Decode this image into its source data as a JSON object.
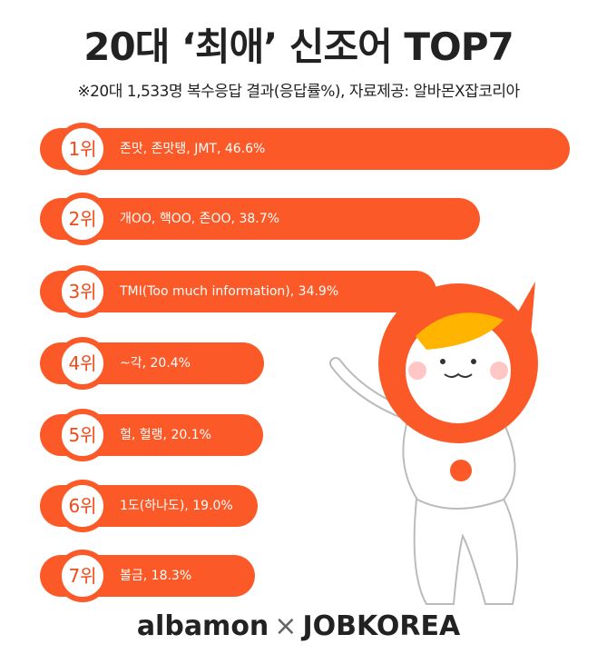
{
  "title": "20대 ‘최애’ 신조어 TOP7",
  "subtitle": "※20대 1,533명 복수응답 결과(응답률%),  자료제공: 알바몬X잡코리아",
  "chart_data": {
    "type": "bar",
    "orientation": "horizontal",
    "title": "20대 ‘최애’ 신조어 TOP7",
    "unit": "%",
    "bar_color": "#fb5a28",
    "categories": [
      "1위",
      "2위",
      "3위",
      "4위",
      "5위",
      "6위",
      "7위"
    ],
    "labels": [
      "존맛, 존맛탱, JMT, 46.6%",
      "개OO, 핵OO, 존OO, 38.7%",
      "TMI(Too much information), 34.9%",
      "~각, 20.4%",
      "헐, 헐랭, 20.1%",
      "1도(하나도), 19.0%",
      "볼금, 18.3%"
    ],
    "values": [
      46.6,
      38.7,
      34.9,
      20.4,
      20.1,
      19.0,
      18.3
    ]
  },
  "footer": {
    "brand1": "albamon",
    "sep": "×",
    "brand2": "JOBKOREA"
  }
}
